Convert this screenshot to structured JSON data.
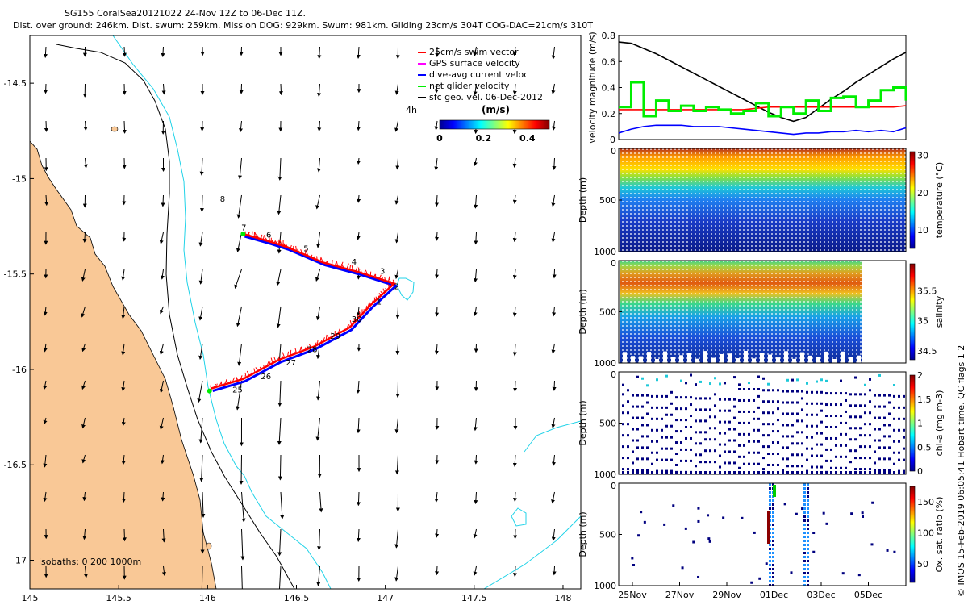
{
  "header": {
    "title_line1": "SG155 CoralSea20121022 24-Nov 12Z to 06-Dec 11Z.",
    "title_line2": "Dist. over ground: 246km. Dist. swum: 259km. Mission DOG: 929km. Swum: 981km. Gliding 23cm/s 304T COG-DAC=21cm/s 310T"
  },
  "colors": {
    "land": "#f9c896",
    "glider_track": "#ff0000",
    "dac_line": "#0000ff",
    "net_velocity": "#00ee00",
    "isobath_200": "#22d3e8",
    "isobath_1000": "#000000",
    "velocity_magnitude_line": "#000000"
  },
  "chart_data": [
    {
      "type": "scatter",
      "name": "glider_map",
      "xlim": [
        145,
        148.1
      ],
      "ylim": [
        -17.15,
        -14.25
      ],
      "xticks": [
        "145",
        "145.5",
        "146",
        "146.5",
        "147",
        "147.5",
        "148"
      ],
      "yticks": [
        "-14.5",
        "-15",
        "-15.5",
        "-16",
        "-16.5",
        "-17"
      ],
      "legend": {
        "placement": "top-right",
        "items": [
          {
            "label": "25cm/s swim vector",
            "color": "#ff0000",
            "marker": "arrow"
          },
          {
            "label": "GPS surface velocity",
            "color": "#ff00ff",
            "marker": "arrow"
          },
          {
            "label": "dive-avg current veloc",
            "color": "#0000ff",
            "marker": "arrow"
          },
          {
            "label": "net glider velocity",
            "color": "#00ee00",
            "marker": "arrow"
          },
          {
            "label": "sfc geo. vel. 06-Dec-2012",
            "color": "#000000",
            "marker": "arrow"
          }
        ],
        "extra": "4h"
      },
      "colorbar": {
        "label": "(m/s)",
        "ticks": [
          "0",
          "0.2",
          "0.4"
        ],
        "range": [
          0,
          0.5
        ]
      },
      "isobaths_label": "isobaths: 0   200  1000m",
      "track": [
        [
          146.02,
          -16.1
        ],
        [
          146.2,
          -16.05
        ],
        [
          146.4,
          -15.95
        ],
        [
          146.6,
          -15.88
        ],
        [
          146.8,
          -15.78
        ],
        [
          146.92,
          -15.66
        ],
        [
          147.05,
          -15.55
        ],
        [
          146.85,
          -15.49
        ],
        [
          146.65,
          -15.44
        ],
        [
          146.45,
          -15.36
        ],
        [
          146.35,
          -15.33
        ],
        [
          146.2,
          -15.29
        ]
      ],
      "day_labels": [
        {
          "text": "25",
          "x": 146.14,
          "y": -16.12
        },
        {
          "text": "26",
          "x": 146.3,
          "y": -16.05
        },
        {
          "text": "27",
          "x": 146.44,
          "y": -15.98
        },
        {
          "text": "28",
          "x": 146.56,
          "y": -15.91
        },
        {
          "text": "29",
          "x": 146.69,
          "y": -15.84
        },
        {
          "text": "30",
          "x": 146.81,
          "y": -15.75
        },
        {
          "text": "1",
          "x": 146.95,
          "y": -15.66
        },
        {
          "text": "2",
          "x": 147.05,
          "y": -15.58
        },
        {
          "text": "3",
          "x": 146.97,
          "y": -15.5
        },
        {
          "text": "4",
          "x": 146.81,
          "y": -15.45
        },
        {
          "text": "5",
          "x": 146.54,
          "y": -15.38
        },
        {
          "text": "6",
          "x": 146.33,
          "y": -15.31
        },
        {
          "text": "7",
          "x": 146.19,
          "y": -15.27
        },
        {
          "text": "8",
          "x": 146.07,
          "y": -15.12
        }
      ]
    },
    {
      "type": "line",
      "name": "velocity_magnitude",
      "ylabel": "velocity magnitude (m/s)",
      "ylim": [
        0,
        0.8
      ],
      "yticks": [
        "0",
        "0.2",
        "0.4",
        "0.6",
        "0.8"
      ],
      "x": [
        0,
        0.5,
        1,
        1.5,
        2,
        2.5,
        3,
        3.5,
        4,
        4.5,
        5,
        5.5,
        6,
        6.5,
        7,
        7.5,
        8,
        8.5,
        9,
        9.5,
        10,
        10.5,
        11,
        11.5
      ],
      "series": [
        {
          "color": "#000000",
          "values": [
            0.75,
            0.74,
            0.7,
            0.66,
            0.61,
            0.56,
            0.51,
            0.46,
            0.41,
            0.36,
            0.31,
            0.26,
            0.21,
            0.17,
            0.14,
            0.17,
            0.24,
            0.31,
            0.37,
            0.44,
            0.5,
            0.56,
            0.62,
            0.67
          ]
        },
        {
          "color": "#ff0000",
          "values": [
            0.23,
            0.23,
            0.23,
            0.23,
            0.23,
            0.23,
            0.23,
            0.23,
            0.23,
            0.23,
            0.23,
            0.24,
            0.25,
            0.25,
            0.25,
            0.25,
            0.25,
            0.25,
            0.25,
            0.25,
            0.25,
            0.25,
            0.25,
            0.26
          ]
        },
        {
          "color": "#0000ff",
          "values": [
            0.05,
            0.08,
            0.1,
            0.11,
            0.11,
            0.11,
            0.1,
            0.1,
            0.1,
            0.09,
            0.08,
            0.07,
            0.06,
            0.05,
            0.04,
            0.05,
            0.05,
            0.06,
            0.06,
            0.07,
            0.06,
            0.07,
            0.06,
            0.09
          ]
        },
        {
          "color": "#00ee00",
          "values": [
            0.25,
            0.44,
            0.18,
            0.3,
            0.22,
            0.26,
            0.22,
            0.25,
            0.23,
            0.2,
            0.22,
            0.28,
            0.18,
            0.25,
            0.2,
            0.3,
            0.22,
            0.32,
            0.33,
            0.25,
            0.3,
            0.38,
            0.4,
            0.3
          ]
        }
      ]
    },
    {
      "type": "heatmap",
      "name": "temperature_section",
      "ylabel": "Depth (m)",
      "colorbar_label": "temperature (°C)",
      "colorbar_ticks": [
        "10",
        "20",
        "30"
      ],
      "colorbar_range": [
        5,
        31
      ],
      "ylim": [
        1000,
        0
      ],
      "yticks": [
        "0",
        "500",
        "1000"
      ]
    },
    {
      "type": "heatmap",
      "name": "salinity_section",
      "ylabel": "Depth (m)",
      "colorbar_label": "salinity",
      "colorbar_ticks": [
        "34.5",
        "35",
        "35.5"
      ],
      "colorbar_range": [
        34.35,
        35.95
      ],
      "ylim": [
        1000,
        0
      ],
      "yticks": [
        "0",
        "500",
        "1000"
      ]
    },
    {
      "type": "heatmap",
      "name": "chla_section",
      "ylabel": "Depth (m)",
      "colorbar_label": "chl-a (mg m-3)",
      "colorbar_ticks": [
        "0",
        "0.5",
        "1",
        "1.5",
        "2"
      ],
      "colorbar_range": [
        0,
        2
      ],
      "ylim": [
        1000,
        0
      ],
      "yticks": [
        "0",
        "500",
        "1000"
      ]
    },
    {
      "type": "scatter",
      "name": "oxygen_section",
      "ylabel": "Depth (m)",
      "colorbar_label": "Ox. sat. ratio (%)",
      "colorbar_ticks": [
        "50",
        "100",
        "150"
      ],
      "colorbar_range": [
        20,
        175
      ],
      "ylim": [
        1000,
        0
      ],
      "yticks": [
        "0",
        "500",
        "1000"
      ],
      "xticks": [
        "25Nov",
        "27Nov",
        "29Nov",
        "01Dec",
        "03Dec",
        "05Dec"
      ]
    }
  ],
  "side_note": "© IMOS 15-Feb-2019 06:05:41 Hobart time. QC flags 1 2"
}
